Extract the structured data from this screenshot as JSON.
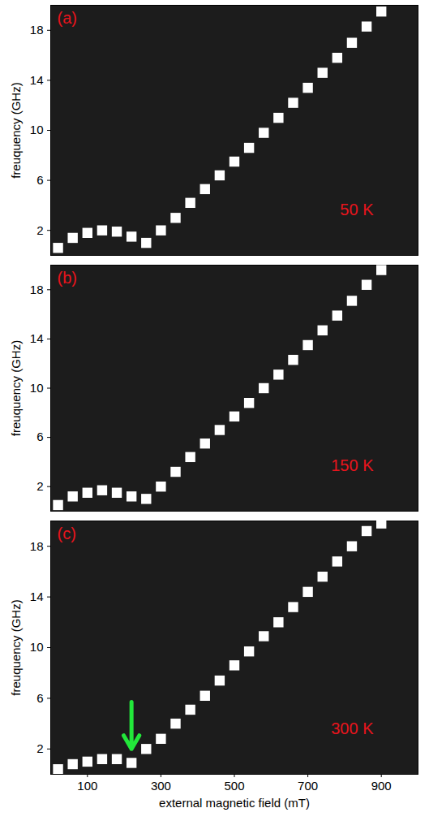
{
  "chart_data": [
    {
      "type": "scatter",
      "panel": "(a)",
      "marker": "square",
      "color": "#ffffff",
      "ylabel": "freuquency (GHz)",
      "tick_labels": "y",
      "xlim": [
        0,
        1000
      ],
      "xticks": [
        100,
        300,
        500,
        700,
        900
      ],
      "ylim": [
        0,
        20
      ],
      "yticks": [
        2,
        6,
        10,
        14,
        18
      ],
      "x": [
        20,
        60,
        100,
        140,
        180,
        220,
        260,
        300,
        340,
        380,
        420,
        460,
        500,
        540,
        580,
        620,
        660,
        700,
        740,
        780,
        820,
        860,
        900,
        940,
        980
      ],
      "values": [
        0.6,
        1.4,
        1.8,
        2.0,
        1.9,
        1.5,
        1.0,
        2.0,
        3.0,
        4.2,
        5.3,
        6.4,
        7.5,
        8.6,
        9.8,
        11.0,
        12.2,
        13.4,
        14.6,
        15.8,
        17.0,
        18.3,
        19.5,
        null,
        null
      ],
      "annotations": [
        {
          "text": "50 K"
        }
      ]
    },
    {
      "type": "scatter",
      "panel": "(b)",
      "marker": "square",
      "color": "#ffffff",
      "ylabel": "freuquency (GHz)",
      "tick_labels": "y",
      "xlim": [
        0,
        1000
      ],
      "xticks": [
        100,
        300,
        500,
        700,
        900
      ],
      "ylim": [
        0,
        20
      ],
      "yticks": [
        2,
        6,
        10,
        14,
        18
      ],
      "x": [
        20,
        60,
        100,
        140,
        180,
        220,
        260,
        300,
        340,
        380,
        420,
        460,
        500,
        540,
        580,
        620,
        660,
        700,
        740,
        780,
        820,
        860,
        900,
        940,
        980
      ],
      "values": [
        0.5,
        1.2,
        1.5,
        1.7,
        1.5,
        1.2,
        1.0,
        2.0,
        3.2,
        4.4,
        5.5,
        6.6,
        7.7,
        8.8,
        10.0,
        11.1,
        12.3,
        13.5,
        14.7,
        15.9,
        17.1,
        18.4,
        19.6,
        null,
        null
      ],
      "annotations": [
        {
          "text": "150 K"
        }
      ]
    },
    {
      "type": "scatter",
      "panel": "(c)",
      "marker": "square",
      "color": "#ffffff",
      "xlabel": "external magnetic field (mT)",
      "ylabel": "freuquency (GHz)",
      "xlim": [
        0,
        1000
      ],
      "xticks": [
        100,
        300,
        500,
        700,
        900
      ],
      "ylim": [
        0,
        20
      ],
      "yticks": [
        2,
        6,
        10,
        14,
        18
      ],
      "x": [
        20,
        60,
        100,
        140,
        180,
        220,
        260,
        300,
        340,
        380,
        420,
        460,
        500,
        540,
        580,
        620,
        660,
        700,
        740,
        780,
        820,
        860,
        900,
        940,
        980
      ],
      "values": [
        0.4,
        0.8,
        1.0,
        1.2,
        1.2,
        0.9,
        2.0,
        2.8,
        4.0,
        5.1,
        6.2,
        7.4,
        8.6,
        9.7,
        10.9,
        12.0,
        13.2,
        14.4,
        15.6,
        16.8,
        18.0,
        19.2,
        19.8,
        null,
        null
      ],
      "annotations": [
        {
          "text": "300 K"
        },
        {
          "type": "arrow",
          "x": 220,
          "y": 1.2
        }
      ]
    }
  ]
}
